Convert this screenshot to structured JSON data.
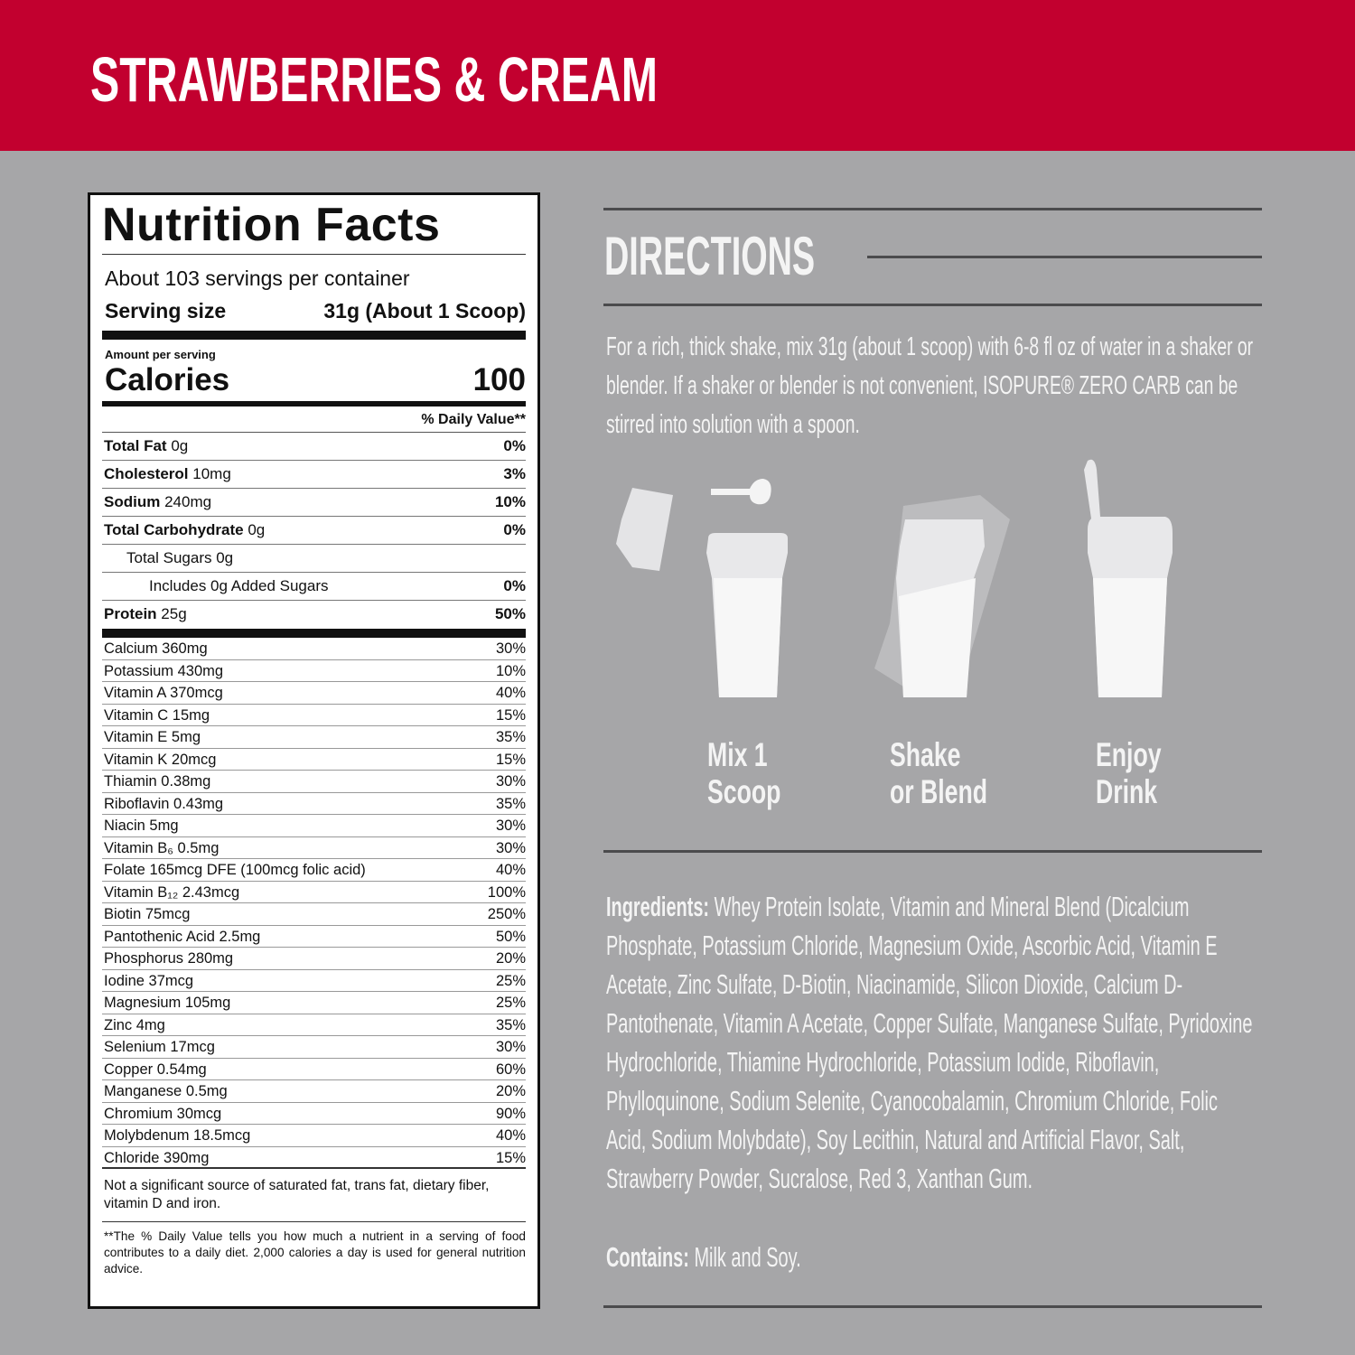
{
  "header": {
    "title": "STRAWBERRIES & CREAM"
  },
  "nutrition": {
    "title": "Nutrition Facts",
    "servings": "About 103 servings per container",
    "serving_size_label": "Serving size",
    "serving_size": "31g (About 1 Scoop)",
    "amount_label": "Amount per serving",
    "calories_label": "Calories",
    "calories": "100",
    "dv_header": "% Daily Value**",
    "main_rows": [
      {
        "name": "Total Fat",
        "amount": "0g",
        "dv": "0%",
        "level": 0
      },
      {
        "name": "Cholesterol",
        "amount": "10mg",
        "dv": "3%",
        "level": 0
      },
      {
        "name": "Sodium",
        "amount": "240mg",
        "dv": "10%",
        "level": 0
      },
      {
        "name": "Total Carbohydrate",
        "amount": "0g",
        "dv": "0%",
        "level": 0
      },
      {
        "name": "Total Sugars 0g",
        "level": 1
      },
      {
        "name": "Includes 0g Added Sugars",
        "dv": "0%",
        "level": 2
      },
      {
        "name": "Protein",
        "amount": "25g",
        "dv": "50%",
        "level": 0
      }
    ],
    "vitamin_rows": [
      [
        "Calcium 360mg",
        "30%"
      ],
      [
        "Potassium 430mg",
        "10%"
      ],
      [
        "Vitamin A 370mcg",
        "40%"
      ],
      [
        "Vitamin C 15mg",
        "15%"
      ],
      [
        "Vitamin E 5mg",
        "35%"
      ],
      [
        "Vitamin K 20mcg",
        "15%"
      ],
      [
        "Thiamin 0.38mg",
        "30%"
      ],
      [
        "Riboflavin 0.43mg",
        "35%"
      ],
      [
        "Niacin 5mg",
        "30%"
      ],
      [
        "Vitamin B₆ 0.5mg",
        "30%"
      ],
      [
        "Folate 165mcg DFE (100mcg folic acid)",
        "40%"
      ],
      [
        "Vitamin B₁₂ 2.43mcg",
        "100%"
      ],
      [
        "Biotin 75mcg",
        "250%"
      ],
      [
        "Pantothenic Acid 2.5mg",
        "50%"
      ],
      [
        "Phosphorus 280mg",
        "20%"
      ],
      [
        "Iodine 37mcg",
        "25%"
      ],
      [
        "Magnesium 105mg",
        "25%"
      ],
      [
        "Zinc 4mg",
        "35%"
      ],
      [
        "Selenium 17mcg",
        "30%"
      ],
      [
        "Copper 0.54mg",
        "60%"
      ],
      [
        "Manganese 0.5mg",
        "20%"
      ],
      [
        "Chromium 30mcg",
        "90%"
      ],
      [
        "Molybdenum 18.5mcg",
        "40%"
      ],
      [
        "Chloride 390mg",
        "15%"
      ]
    ],
    "note": "Not a significant source of saturated fat, trans fat, dietary fiber, vitamin D and iron.",
    "footnote": "**The % Daily Value tells you how much a nutrient in a serving of food contributes to a daily diet. 2,000 calories a day is used for general nutrition advice."
  },
  "directions": {
    "title": "DIRECTIONS",
    "text": "For a rich, thick shake, mix 31g (about 1 scoop) with 6-8 fl oz of water in a shaker or blender. If a shaker or blender is not convenient, ISOPURE® ZERO CARB can be stirred into solution with a spoon.",
    "steps": [
      [
        "Mix 1",
        "Scoop"
      ],
      [
        "Shake",
        "or Blend"
      ],
      [
        "Enjoy",
        "Drink"
      ]
    ]
  },
  "ingredients": {
    "label": "Ingredients:",
    "text": "Whey Protein Isolate, Vitamin and Mineral Blend (Dicalcium Phosphate, Potassium Chloride, Magnesium Oxide, Ascorbic Acid, Vitamin E Acetate, Zinc Sulfate, D-Biotin, Niacinamide, Silicon Dioxide, Calcium D-Pantothenate, Vitamin A Acetate, Copper Sulfate, Manganese Sulfate, Pyridoxine Hydrochloride, Thiamine Hydrochloride, Potassium Iodide, Riboflavin, Phylloquinone, Sodium Selenite, Cyanocobalamin, Chromium Chloride, Folic Acid, Sodium Molybdate), Soy Lecithin, Natural and Artificial Flavor, Salt, Strawberry Powder, Sucralose, Red 3, Xanthan Gum."
  },
  "contains": {
    "label": "Contains:",
    "text": "Milk and Soy."
  }
}
